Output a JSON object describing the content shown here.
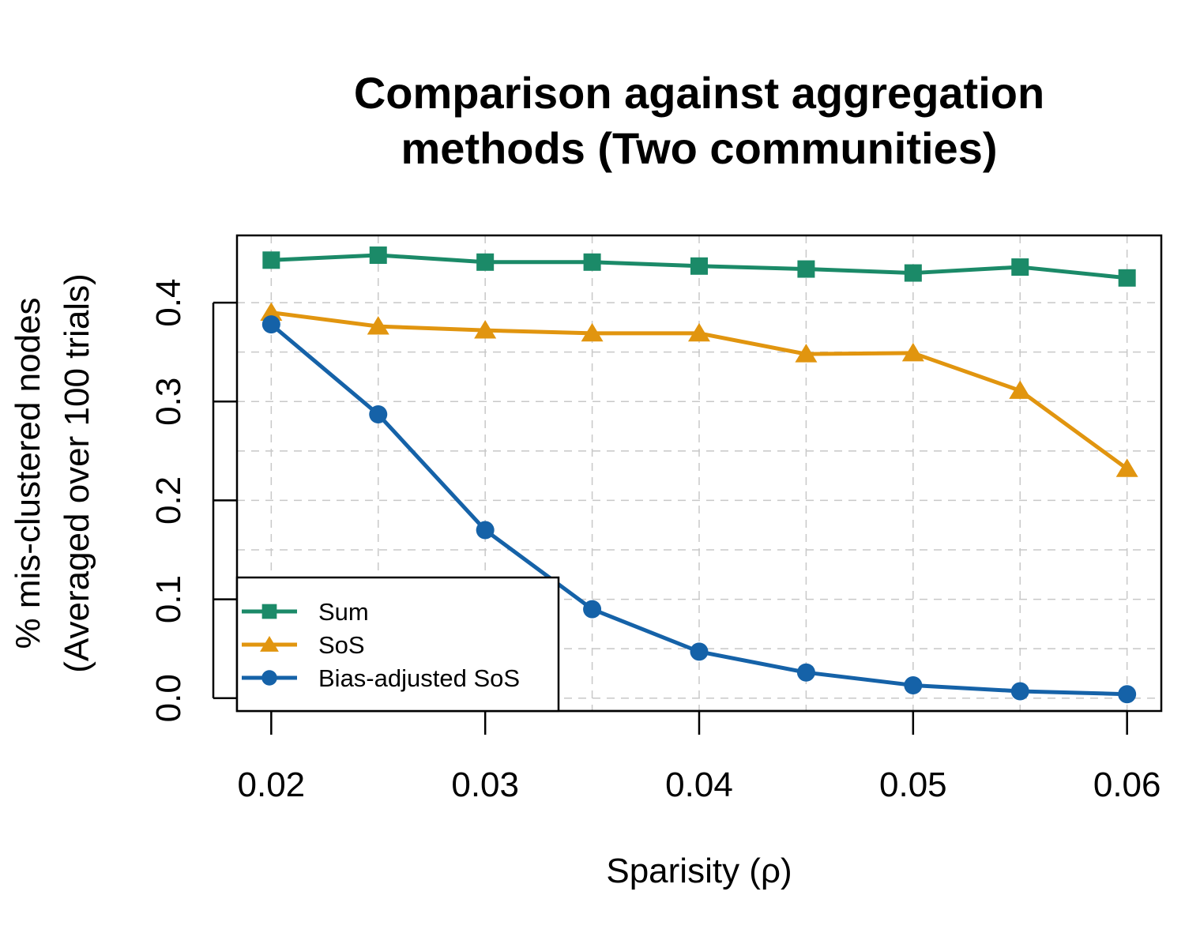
{
  "chart_data": {
    "type": "line",
    "title": [
      "Comparison against aggregation",
      "methods (Two communities)"
    ],
    "xlabel": "Sparisity (ρ)",
    "ylabel": [
      "% mis-clustered nodes",
      "(Averaged over 100 trials)"
    ],
    "x": [
      0.02,
      0.025,
      0.03,
      0.035,
      0.04,
      0.045,
      0.05,
      0.055,
      0.06
    ],
    "xlim": [
      0.0184,
      0.0616
    ],
    "ylim": [
      -0.013,
      0.468
    ],
    "xticks": [
      "0.02",
      "0.03",
      "0.04",
      "0.05",
      "0.06"
    ],
    "yticks": [
      "0.0",
      "0.1",
      "0.2",
      "0.3",
      "0.4"
    ],
    "grid": true,
    "legend_position": "bottom-left",
    "series": [
      {
        "name": "Sum",
        "color": "#1b8a68",
        "marker": "square",
        "values": [
          0.443,
          0.448,
          0.441,
          0.441,
          0.437,
          0.434,
          0.43,
          0.436,
          0.425
        ]
      },
      {
        "name": "SoS",
        "color": "#e1950f",
        "marker": "triangle",
        "values": [
          0.39,
          0.376,
          0.372,
          0.369,
          0.369,
          0.348,
          0.349,
          0.311,
          0.232
        ]
      },
      {
        "name": "Bias-adjusted SoS",
        "color": "#1562a8",
        "marker": "circle",
        "values": [
          0.378,
          0.287,
          0.17,
          0.09,
          0.047,
          0.026,
          0.013,
          0.007,
          0.004
        ]
      }
    ]
  }
}
